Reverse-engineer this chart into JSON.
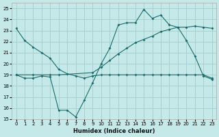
{
  "xlabel": "Humidex (Indice chaleur)",
  "bg_color": "#c5e8e8",
  "grid_color": "#a8d0d0",
  "line_color": "#1a6b6b",
  "xlim": [
    -0.5,
    23.5
  ],
  "ylim": [
    15,
    25.5
  ],
  "xticks": [
    0,
    1,
    2,
    3,
    4,
    5,
    6,
    7,
    8,
    9,
    10,
    11,
    12,
    13,
    14,
    15,
    16,
    17,
    18,
    19,
    20,
    21,
    22,
    23
  ],
  "yticks": [
    15,
    16,
    17,
    18,
    19,
    20,
    21,
    22,
    23,
    24,
    25
  ],
  "line1_x": [
    0,
    1,
    2,
    3,
    4,
    5,
    6,
    7,
    8,
    9,
    10,
    11,
    12,
    13,
    14,
    15,
    16,
    17,
    18,
    19,
    20,
    21,
    22,
    23
  ],
  "line1_y": [
    23.2,
    22.1,
    21.5,
    21.0,
    20.5,
    19.5,
    19.1,
    18.9,
    18.7,
    18.9,
    19.0,
    19.0,
    19.0,
    19.0,
    19.0,
    19.0,
    19.0,
    19.0,
    19.0,
    19.0,
    19.0,
    19.0,
    19.0,
    18.7
  ],
  "line2_x": [
    0,
    1,
    2,
    3,
    4,
    5,
    6,
    7,
    8,
    9,
    10,
    11,
    12,
    13,
    14,
    15,
    16,
    17,
    18,
    19,
    20,
    21,
    22,
    23
  ],
  "line2_y": [
    19.0,
    18.7,
    18.7,
    18.9,
    18.8,
    15.8,
    15.8,
    15.2,
    16.7,
    18.3,
    20.0,
    21.4,
    23.5,
    23.7,
    23.7,
    24.9,
    24.1,
    24.4,
    23.5,
    23.3,
    22.1,
    20.7,
    18.9,
    18.6
  ],
  "line3_x": [
    0,
    2,
    4,
    5,
    9,
    10,
    11,
    12,
    13,
    14,
    15,
    16,
    17,
    18,
    19,
    20,
    21,
    22,
    23
  ],
  "line3_y": [
    19.0,
    19.0,
    19.0,
    19.0,
    19.2,
    19.7,
    20.3,
    20.9,
    21.4,
    21.9,
    22.2,
    22.5,
    22.9,
    23.1,
    23.3,
    23.3,
    23.4,
    23.3,
    23.2
  ]
}
